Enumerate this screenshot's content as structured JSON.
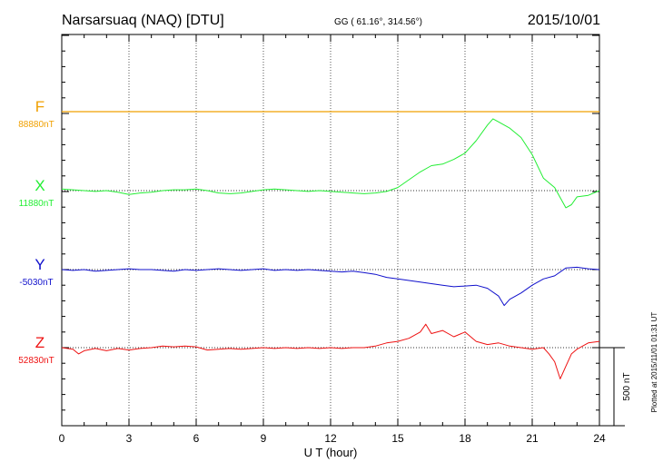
{
  "header": {
    "station": "Narsarsuaq (NAQ)  [DTU]",
    "coords": "GG ( 61.16°, 314.56°)",
    "date": "2015/10/01"
  },
  "footer": {
    "plotted_note": "Plotted at 2015/11/01 01:31  UT",
    "scale_label": "500 nT"
  },
  "colors": {
    "F": "#f0a000",
    "X": "#22ee33",
    "Y": "#1010cc",
    "Z": "#ee1111",
    "axes": "#000000"
  },
  "chart_data": {
    "type": "line",
    "xlabel": "U T (hour)",
    "xlim": [
      0,
      24
    ],
    "x_ticks": [
      0,
      3,
      6,
      9,
      12,
      15,
      18,
      21,
      24
    ],
    "scale_bar_nT": 500,
    "series": [
      {
        "key": "F",
        "name": "F",
        "baseline_label": "88880nT",
        "points": [
          [
            0,
            0
          ],
          [
            24,
            0
          ]
        ]
      },
      {
        "key": "X",
        "name": "X",
        "baseline_label": "11880nT",
        "points": [
          [
            0,
            10
          ],
          [
            0.5,
            5
          ],
          [
            1,
            0
          ],
          [
            1.5,
            -5
          ],
          [
            2,
            0
          ],
          [
            2.5,
            -10
          ],
          [
            3,
            -25
          ],
          [
            3.5,
            -15
          ],
          [
            4,
            -10
          ],
          [
            4.5,
            0
          ],
          [
            5,
            5
          ],
          [
            5.5,
            5
          ],
          [
            6,
            10
          ],
          [
            6.5,
            0
          ],
          [
            7,
            -15
          ],
          [
            7.5,
            -20
          ],
          [
            8,
            -15
          ],
          [
            8.5,
            -5
          ],
          [
            9,
            5
          ],
          [
            9.5,
            10
          ],
          [
            10,
            5
          ],
          [
            10.5,
            0
          ],
          [
            11,
            -5
          ],
          [
            11.5,
            0
          ],
          [
            12,
            -5
          ],
          [
            12.5,
            -10
          ],
          [
            13,
            -15
          ],
          [
            13.5,
            -20
          ],
          [
            14,
            -15
          ],
          [
            14.5,
            -5
          ],
          [
            15,
            20
          ],
          [
            15.5,
            70
          ],
          [
            16,
            120
          ],
          [
            16.5,
            160
          ],
          [
            17,
            170
          ],
          [
            17.5,
            200
          ],
          [
            18,
            240
          ],
          [
            18.5,
            320
          ],
          [
            19,
            420
          ],
          [
            19.25,
            460
          ],
          [
            19.5,
            440
          ],
          [
            20,
            400
          ],
          [
            20.5,
            340
          ],
          [
            21,
            230
          ],
          [
            21.5,
            80
          ],
          [
            22,
            20
          ],
          [
            22.5,
            -110
          ],
          [
            22.75,
            -90
          ],
          [
            23,
            -40
          ],
          [
            23.5,
            -30
          ],
          [
            24,
            0
          ]
        ]
      },
      {
        "key": "Y",
        "name": "Y",
        "baseline_label": "-5030nT",
        "points": [
          [
            0,
            0
          ],
          [
            0.5,
            -5
          ],
          [
            1,
            0
          ],
          [
            1.5,
            -10
          ],
          [
            2,
            -5
          ],
          [
            2.5,
            0
          ],
          [
            3,
            5
          ],
          [
            3.5,
            0
          ],
          [
            4,
            0
          ],
          [
            4.5,
            -5
          ],
          [
            5,
            -10
          ],
          [
            5.5,
            0
          ],
          [
            6,
            -5
          ],
          [
            6.5,
            0
          ],
          [
            7,
            5
          ],
          [
            7.5,
            0
          ],
          [
            8,
            -5
          ],
          [
            8.5,
            0
          ],
          [
            9,
            5
          ],
          [
            9.5,
            -5
          ],
          [
            10,
            0
          ],
          [
            10.5,
            -5
          ],
          [
            11,
            0
          ],
          [
            11.5,
            -5
          ],
          [
            12,
            -10
          ],
          [
            12.5,
            -15
          ],
          [
            13,
            -10
          ],
          [
            13.5,
            -20
          ],
          [
            14,
            -30
          ],
          [
            14.5,
            -50
          ],
          [
            15,
            -60
          ],
          [
            15.5,
            -70
          ],
          [
            16,
            -80
          ],
          [
            16.5,
            -90
          ],
          [
            17,
            -100
          ],
          [
            17.5,
            -110
          ],
          [
            18,
            -105
          ],
          [
            18.5,
            -100
          ],
          [
            19,
            -120
          ],
          [
            19.5,
            -170
          ],
          [
            19.75,
            -230
          ],
          [
            20,
            -190
          ],
          [
            20.5,
            -150
          ],
          [
            21,
            -100
          ],
          [
            21.5,
            -60
          ],
          [
            22,
            -40
          ],
          [
            22.5,
            10
          ],
          [
            23,
            15
          ],
          [
            23.5,
            5
          ],
          [
            24,
            0
          ]
        ]
      },
      {
        "key": "Z",
        "name": "Z",
        "baseline_label": "52830nT",
        "points": [
          [
            0,
            0
          ],
          [
            0.5,
            -10
          ],
          [
            0.75,
            -40
          ],
          [
            1,
            -20
          ],
          [
            1.5,
            -5
          ],
          [
            2,
            -20
          ],
          [
            2.5,
            -5
          ],
          [
            3,
            -15
          ],
          [
            3.5,
            -5
          ],
          [
            4,
            0
          ],
          [
            4.5,
            10
          ],
          [
            5,
            5
          ],
          [
            5.5,
            10
          ],
          [
            6,
            5
          ],
          [
            6.5,
            -15
          ],
          [
            7,
            -10
          ],
          [
            7.5,
            -5
          ],
          [
            8,
            -10
          ],
          [
            8.5,
            -5
          ],
          [
            9,
            0
          ],
          [
            9.5,
            -5
          ],
          [
            10,
            0
          ],
          [
            10.5,
            -5
          ],
          [
            11,
            0
          ],
          [
            11.5,
            -5
          ],
          [
            12,
            0
          ],
          [
            12.5,
            -5
          ],
          [
            13,
            0
          ],
          [
            13.5,
            0
          ],
          [
            14,
            10
          ],
          [
            14.5,
            30
          ],
          [
            15,
            40
          ],
          [
            15.5,
            60
          ],
          [
            16,
            100
          ],
          [
            16.25,
            150
          ],
          [
            16.5,
            90
          ],
          [
            17,
            110
          ],
          [
            17.5,
            70
          ],
          [
            18,
            100
          ],
          [
            18.5,
            40
          ],
          [
            19,
            20
          ],
          [
            19.5,
            30
          ],
          [
            20,
            10
          ],
          [
            20.5,
            0
          ],
          [
            21,
            -10
          ],
          [
            21.5,
            0
          ],
          [
            21.75,
            -40
          ],
          [
            22,
            -90
          ],
          [
            22.25,
            -200
          ],
          [
            22.5,
            -120
          ],
          [
            22.75,
            -40
          ],
          [
            23,
            -10
          ],
          [
            23.5,
            30
          ],
          [
            24,
            40
          ]
        ]
      }
    ]
  }
}
